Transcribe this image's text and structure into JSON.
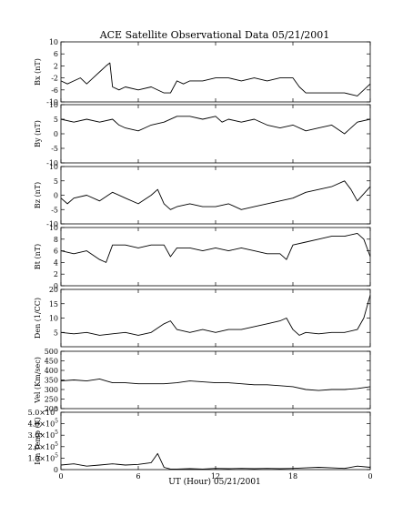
{
  "chart_data": {
    "type": "line",
    "title": "ACE Satellite Observational Data   05/21/2001",
    "xlabel": "UT (Hour)   05/21/2001",
    "xlim": [
      0,
      24
    ],
    "xticks": [
      "0",
      "6",
      "12",
      "18",
      "0"
    ],
    "xtick_values": [
      0,
      6,
      12,
      18,
      24
    ],
    "panels": [
      {
        "name": "Bx",
        "ylabel": "Bx (nT)",
        "ylim": [
          -10,
          10
        ],
        "yticks": [
          -10,
          -6,
          -2,
          2,
          6,
          10
        ],
        "yticklabels": [
          "-10",
          "-6",
          "-2",
          "2",
          "6",
          "10"
        ],
        "x": [
          0,
          0.5,
          1,
          1.5,
          2,
          2.5,
          3,
          3.5,
          3.8,
          4,
          4.5,
          5,
          6,
          7,
          8,
          8.5,
          9,
          9.5,
          10,
          11,
          12,
          13,
          14,
          15,
          16,
          17,
          18,
          18.5,
          19,
          20,
          21,
          22,
          23,
          23.5,
          24
        ],
        "y": [
          -3,
          -4,
          -3,
          -2,
          -4,
          -2,
          0,
          2,
          3,
          -5,
          -6,
          -5,
          -6,
          -5,
          -7,
          -7,
          -3,
          -4,
          -3,
          -3,
          -2,
          -2,
          -3,
          -2,
          -3,
          -2,
          -2,
          -5,
          -7,
          -7,
          -7,
          -7,
          -8,
          -6,
          -4
        ]
      },
      {
        "name": "By",
        "ylabel": "By (nT)",
        "ylim": [
          -10,
          10
        ],
        "yticks": [
          -10,
          -5,
          0,
          5,
          10
        ],
        "yticklabels": [
          "-10",
          "-5",
          "0",
          "5",
          "10"
        ],
        "x": [
          0,
          1,
          2,
          3,
          4,
          4.5,
          5,
          6,
          6.5,
          7,
          8,
          9,
          10,
          11,
          12,
          12.5,
          13,
          14,
          15,
          16,
          17,
          18,
          19,
          20,
          21,
          22,
          22.5,
          23,
          24
        ],
        "y": [
          5,
          4,
          5,
          4,
          5,
          3,
          2,
          1,
          2,
          3,
          4,
          6,
          6,
          5,
          6,
          4,
          5,
          4,
          5,
          3,
          2,
          3,
          1,
          2,
          3,
          0,
          2,
          4,
          5
        ]
      },
      {
        "name": "Bz",
        "ylabel": "Bz (nT)",
        "ylim": [
          -10,
          10
        ],
        "yticks": [
          -10,
          -5,
          0,
          5,
          10
        ],
        "yticklabels": [
          "-10",
          "-5",
          "0",
          "5",
          "10"
        ],
        "x": [
          0,
          0.5,
          1,
          2,
          3,
          4,
          5,
          6,
          7,
          7.5,
          8,
          8.5,
          9,
          10,
          11,
          12,
          13,
          14,
          15,
          16,
          17,
          18,
          19,
          20,
          21,
          22,
          22.5,
          23,
          24
        ],
        "y": [
          -1,
          -3,
          -1,
          0,
          -2,
          1,
          -1,
          -3,
          0,
          2,
          -3,
          -5,
          -4,
          -3,
          -4,
          -4,
          -3,
          -5,
          -4,
          -3,
          -2,
          -1,
          1,
          2,
          3,
          5,
          2,
          -2,
          3
        ]
      },
      {
        "name": "Bt",
        "ylabel": "Bt (nT)",
        "ylim": [
          0,
          10
        ],
        "yticks": [
          0,
          2,
          4,
          6,
          8,
          10
        ],
        "yticklabels": [
          "0",
          "2",
          "4",
          "6",
          "8",
          "10"
        ],
        "x": [
          0,
          1,
          2,
          3,
          3.5,
          4,
          5,
          6,
          7,
          8,
          8.5,
          9,
          10,
          11,
          12,
          13,
          14,
          15,
          16,
          17,
          17.5,
          18,
          19,
          20,
          21,
          22,
          23,
          23.5,
          24
        ],
        "y": [
          6,
          5.5,
          6,
          4.5,
          4,
          7,
          7,
          6.5,
          7,
          7,
          5,
          6.5,
          6.5,
          6,
          6.5,
          6,
          6.5,
          6,
          5.5,
          5.5,
          4.5,
          7,
          7.5,
          8,
          8.5,
          8.5,
          9,
          8,
          5
        ]
      },
      {
        "name": "Density",
        "ylabel": "Den (1/CC)",
        "ylim": [
          0,
          20
        ],
        "yticks": [
          5,
          10,
          15,
          20
        ],
        "yticklabels": [
          "5",
          "10",
          "15",
          "20"
        ],
        "x": [
          0,
          1,
          2,
          3,
          4,
          5,
          6,
          7,
          8,
          8.5,
          9,
          10,
          11,
          12,
          13,
          14,
          15,
          16,
          17,
          17.5,
          18,
          18.5,
          19,
          20,
          21,
          22,
          23,
          23.5,
          24
        ],
        "y": [
          5,
          4.5,
          5,
          4,
          4.5,
          5,
          4,
          5,
          8,
          9,
          6,
          5,
          6,
          5,
          6,
          6,
          7,
          8,
          9,
          10,
          6,
          4,
          5,
          4.5,
          5,
          5,
          6,
          10,
          18
        ]
      },
      {
        "name": "Velocity",
        "ylabel": "Vel (Km/sec)",
        "ylim": [
          200,
          500
        ],
        "yticks": [
          200,
          250,
          300,
          350,
          400,
          450,
          500
        ],
        "yticklabels": [
          "200",
          "250",
          "300",
          "350",
          "400",
          "450",
          "500"
        ],
        "x": [
          0,
          1,
          2,
          3,
          3.5,
          4,
          5,
          6,
          7,
          8,
          9,
          10,
          11,
          12,
          13,
          14,
          15,
          16,
          17,
          18,
          19,
          20,
          21,
          22,
          23,
          24
        ],
        "y": [
          345,
          350,
          345,
          355,
          345,
          335,
          335,
          330,
          330,
          330,
          335,
          345,
          340,
          335,
          335,
          330,
          325,
          325,
          320,
          315,
          300,
          295,
          300,
          300,
          305,
          315
        ]
      },
      {
        "name": "IonTemp",
        "ylabel": "Ion Temp (K)",
        "ylim": [
          0,
          500000
        ],
        "yticks": [
          0,
          100000,
          200000,
          300000,
          400000,
          500000
        ],
        "yticklabels": [
          "0",
          "1.0×10",
          "2.0×10",
          "3.0×10",
          "4.0×10",
          "5.0×10"
        ],
        "ytick_exponent": "5",
        "x": [
          0,
          1,
          2,
          3,
          4,
          5,
          6,
          7,
          7.5,
          8,
          8.5,
          9,
          10,
          11,
          12,
          13,
          14,
          15,
          16,
          17,
          18,
          19,
          20,
          21,
          22,
          23,
          24
        ],
        "y": [
          40000,
          50000,
          30000,
          40000,
          50000,
          40000,
          45000,
          60000,
          140000,
          20000,
          5000,
          5000,
          8000,
          5000,
          10000,
          8000,
          10000,
          8000,
          10000,
          8000,
          10000,
          15000,
          20000,
          15000,
          10000,
          30000,
          20000
        ]
      }
    ]
  }
}
